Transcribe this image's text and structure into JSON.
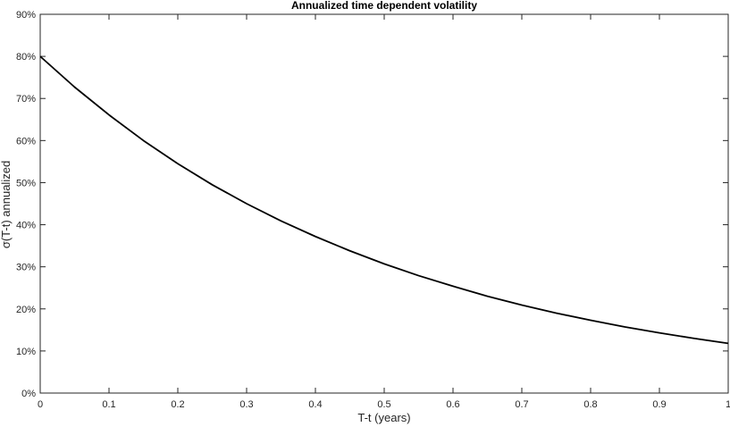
{
  "chart_data": {
    "type": "line",
    "title": "Annualized time dependent volatility",
    "xlabel": "T-t (years)",
    "ylabel": "σ(T-t) annualized",
    "xlim": [
      0,
      1
    ],
    "ylim": [
      0,
      0.9
    ],
    "x_ticks": [
      0,
      0.1,
      0.2,
      0.3,
      0.4,
      0.5,
      0.6,
      0.7,
      0.8,
      0.9,
      1
    ],
    "x_tick_labels": [
      "0",
      "0.1",
      "0.2",
      "0.3",
      "0.4",
      "0.5",
      "0.6",
      "0.7",
      "0.8",
      "0.9",
      "1"
    ],
    "y_ticks": [
      0,
      0.1,
      0.2,
      0.3,
      0.4,
      0.5,
      0.6,
      0.7,
      0.8,
      0.9
    ],
    "y_tick_labels": [
      "0%",
      "10%",
      "20%",
      "30%",
      "40%",
      "50%",
      "60%",
      "70%",
      "80%",
      "90%"
    ],
    "grid": false,
    "line_color": "#000000",
    "series": [
      {
        "x": [
          0,
          0.05,
          0.1,
          0.15,
          0.2,
          0.25,
          0.3,
          0.35,
          0.4,
          0.45,
          0.5,
          0.55,
          0.6,
          0.65,
          0.7,
          0.75,
          0.8,
          0.85,
          0.9,
          0.95,
          1
        ],
        "y": [
          0.8,
          0.727,
          0.661,
          0.6,
          0.545,
          0.495,
          0.45,
          0.409,
          0.372,
          0.338,
          0.307,
          0.279,
          0.254,
          0.23,
          0.209,
          0.19,
          0.173,
          0.157,
          0.143,
          0.13,
          0.118
        ]
      }
    ]
  }
}
